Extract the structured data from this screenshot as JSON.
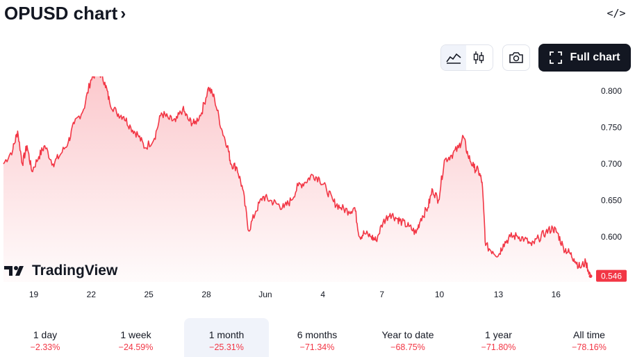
{
  "header": {
    "title": "OPUSD chart",
    "embed_icon": "</>"
  },
  "toolbar": {
    "full_chart_label": "Full chart"
  },
  "branding": {
    "logo_text": "TradingView"
  },
  "colors": {
    "line": "#f23645",
    "fill_top": "#f23645",
    "price_label_bg": "#f23645",
    "text": "#131722",
    "axis_text": "#131722"
  },
  "chart_data": {
    "type": "area",
    "symbol": "OPUSD",
    "x_ticks": [
      "19",
      "22",
      "25",
      "28",
      "Jun",
      "4",
      "7",
      "10",
      "13",
      "16"
    ],
    "y_ticks": [
      "0.800",
      "0.750",
      "0.700",
      "0.650",
      "0.600"
    ],
    "ylim": [
      0.538,
      0.82
    ],
    "last_price": "0.546",
    "points": [
      [
        0,
        0.7
      ],
      [
        0.8,
        0.72
      ],
      [
        1.2,
        0.745
      ],
      [
        1.6,
        0.7
      ],
      [
        2.0,
        0.725
      ],
      [
        2.4,
        0.69
      ],
      [
        3.0,
        0.71
      ],
      [
        3.5,
        0.725
      ],
      [
        4.2,
        0.7
      ],
      [
        4.8,
        0.712
      ],
      [
        5.5,
        0.73
      ],
      [
        6.0,
        0.755
      ],
      [
        6.8,
        0.775
      ],
      [
        7.4,
        0.815
      ],
      [
        8.0,
        0.83
      ],
      [
        8.6,
        0.812
      ],
      [
        9.0,
        0.785
      ],
      [
        9.6,
        0.77
      ],
      [
        10.2,
        0.765
      ],
      [
        10.8,
        0.75
      ],
      [
        11.4,
        0.74
      ],
      [
        12.0,
        0.722
      ],
      [
        12.8,
        0.735
      ],
      [
        13.4,
        0.77
      ],
      [
        14.0,
        0.762
      ],
      [
        14.6,
        0.758
      ],
      [
        15.2,
        0.775
      ],
      [
        15.7,
        0.76
      ],
      [
        16.2,
        0.755
      ],
      [
        16.8,
        0.77
      ],
      [
        17.4,
        0.805
      ],
      [
        17.9,
        0.79
      ],
      [
        18.5,
        0.748
      ],
      [
        19.0,
        0.725
      ],
      [
        19.3,
        0.7
      ],
      [
        19.8,
        0.695
      ],
      [
        20.3,
        0.665
      ],
      [
        20.8,
        0.608
      ],
      [
        21.4,
        0.635
      ],
      [
        22.0,
        0.655
      ],
      [
        22.6,
        0.65
      ],
      [
        23.2,
        0.645
      ],
      [
        23.8,
        0.64
      ],
      [
        24.4,
        0.65
      ],
      [
        25.0,
        0.67
      ],
      [
        25.6,
        0.675
      ],
      [
        26.2,
        0.685
      ],
      [
        26.8,
        0.68
      ],
      [
        27.4,
        0.665
      ],
      [
        28.0,
        0.648
      ],
      [
        28.6,
        0.64
      ],
      [
        29.3,
        0.635
      ],
      [
        29.8,
        0.64
      ],
      [
        30.2,
        0.6
      ],
      [
        30.6,
        0.605
      ],
      [
        31.2,
        0.6
      ],
      [
        31.6,
        0.595
      ],
      [
        32.2,
        0.62
      ],
      [
        32.8,
        0.632
      ],
      [
        33.4,
        0.625
      ],
      [
        33.8,
        0.62
      ],
      [
        34.4,
        0.614
      ],
      [
        35.0,
        0.605
      ],
      [
        35.4,
        0.625
      ],
      [
        36.0,
        0.64
      ],
      [
        36.4,
        0.665
      ],
      [
        36.9,
        0.65
      ],
      [
        37.4,
        0.705
      ],
      [
        38.0,
        0.712
      ],
      [
        38.6,
        0.722
      ],
      [
        39.0,
        0.738
      ],
      [
        39.4,
        0.712
      ],
      [
        39.9,
        0.695
      ],
      [
        40.3,
        0.69
      ],
      [
        40.6,
        0.675
      ],
      [
        40.9,
        0.588
      ],
      [
        41.5,
        0.58
      ],
      [
        42.0,
        0.575
      ],
      [
        42.4,
        0.59
      ],
      [
        43.0,
        0.6
      ],
      [
        43.6,
        0.601
      ],
      [
        44.2,
        0.597
      ],
      [
        44.8,
        0.588
      ],
      [
        45.4,
        0.598
      ],
      [
        46.0,
        0.606
      ],
      [
        46.6,
        0.612
      ],
      [
        47.0,
        0.605
      ],
      [
        47.5,
        0.585
      ],
      [
        48.0,
        0.578
      ],
      [
        48.4,
        0.57
      ],
      [
        48.9,
        0.558
      ],
      [
        49.4,
        0.565
      ],
      [
        49.8,
        0.546
      ]
    ]
  },
  "ranges": [
    {
      "label": "1 day",
      "change": "−2.33%"
    },
    {
      "label": "1 week",
      "change": "−24.59%"
    },
    {
      "label": "1 month",
      "change": "−25.31%"
    },
    {
      "label": "6 months",
      "change": "−71.34%"
    },
    {
      "label": "Year to date",
      "change": "−68.75%"
    },
    {
      "label": "1 year",
      "change": "−71.80%"
    },
    {
      "label": "All time",
      "change": "−78.16%"
    }
  ],
  "active_range": "1 month"
}
